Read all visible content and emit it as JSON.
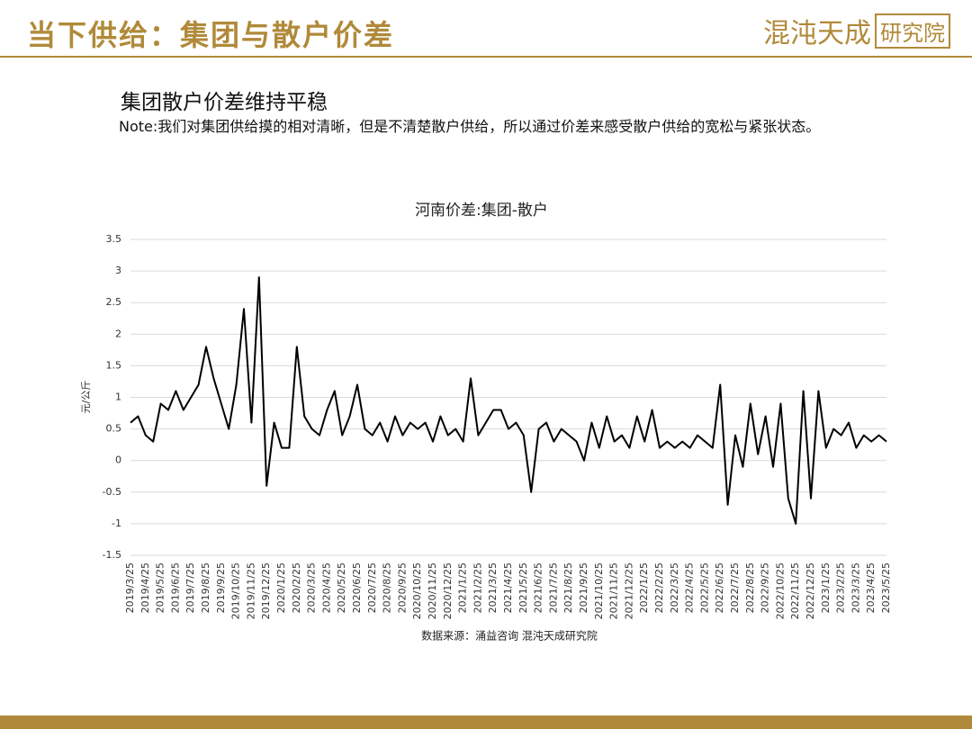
{
  "header": {
    "title": "当下供给：集团与散户价差",
    "logo": "混沌天成",
    "logo_box": "研究院"
  },
  "subtitle": "集团散户价差维持平稳",
  "note": "Note:我们对集团供给摸的相对清晰，但是不清楚散户供给，所以通过价差来感受散户供给的宽松与紧张状态。",
  "chart_data": {
    "type": "line",
    "title": "河南价差:集团-散户",
    "y_label": "元/公斤",
    "source": "数据来源：涌益咨询 混沌天成研究院",
    "categories": [
      "2019/3/25",
      null,
      "2019/4/25",
      null,
      "2019/5/25",
      null,
      "2019/6/25",
      null,
      "2019/7/25",
      null,
      "2019/8/25",
      null,
      "2019/9/25",
      null,
      "2019/10/25",
      null,
      "2019/11/25",
      null,
      "2019/12/25",
      null,
      "2020/1/25",
      null,
      "2020/2/25",
      null,
      "2020/3/25",
      null,
      "2020/4/25",
      null,
      "2020/5/25",
      null,
      "2020/6/25",
      null,
      "2020/7/25",
      null,
      "2020/8/25",
      null,
      "2020/9/25",
      null,
      "2020/10/25",
      null,
      "2020/11/25",
      null,
      "2020/12/25",
      null,
      "2021/1/25",
      null,
      "2021/2/25",
      null,
      "2021/3/25",
      null,
      "2021/4/25",
      null,
      "2021/5/25",
      null,
      "2021/6/25",
      null,
      "2021/7/25",
      null,
      "2021/8/25",
      null,
      "2021/9/25",
      null,
      "2021/10/25",
      null,
      "2021/11/25",
      null,
      "2021/12/25",
      null,
      "2022/1/25",
      null,
      "2022/2/25",
      null,
      "2022/3/25",
      null,
      "2022/4/25",
      null,
      "2022/5/25",
      null,
      "2022/6/25",
      null,
      "2022/7/25",
      null,
      "2022/8/25",
      null,
      "2022/9/25",
      null,
      "2022/10/25",
      null,
      "2022/11/25",
      null,
      "2022/12/25",
      null,
      "2023/1/25",
      null,
      "2023/2/25",
      null,
      "2023/3/25",
      null,
      "2023/4/25",
      null,
      "2023/5/25"
    ],
    "values": [
      0.6,
      0.7,
      0.4,
      0.3,
      0.9,
      0.8,
      1.1,
      0.8,
      1.0,
      1.2,
      1.8,
      1.3,
      0.9,
      0.5,
      1.2,
      2.4,
      0.6,
      2.9,
      -0.4,
      0.6,
      0.2,
      0.2,
      1.8,
      0.7,
      0.5,
      0.4,
      0.8,
      1.1,
      0.4,
      0.7,
      1.2,
      0.5,
      0.4,
      0.6,
      0.3,
      0.7,
      0.4,
      0.6,
      0.5,
      0.6,
      0.3,
      0.7,
      0.4,
      0.5,
      0.3,
      1.3,
      0.4,
      0.6,
      0.8,
      0.8,
      0.5,
      0.6,
      0.4,
      -0.5,
      0.5,
      0.6,
      0.3,
      0.5,
      0.4,
      0.3,
      0.0,
      0.6,
      0.2,
      0.7,
      0.3,
      0.4,
      0.2,
      0.7,
      0.3,
      0.8,
      0.2,
      0.3,
      0.2,
      0.3,
      0.2,
      0.4,
      0.3,
      0.2,
      1.2,
      -0.7,
      0.4,
      -0.1,
      0.9,
      0.1,
      0.7,
      -0.1,
      0.9,
      -0.6,
      -1.0,
      1.1,
      -0.6,
      1.1,
      0.2,
      0.5,
      0.4,
      0.6,
      0.2,
      0.4,
      0.3,
      0.4,
      0.3
    ],
    "color": "#000000",
    "ylim": [
      -1.5,
      3.5
    ],
    "yticks": [
      -1.5,
      -1,
      -0.5,
      0,
      0.5,
      1,
      1.5,
      2,
      2.5,
      3,
      3.5
    ],
    "grid": true
  }
}
